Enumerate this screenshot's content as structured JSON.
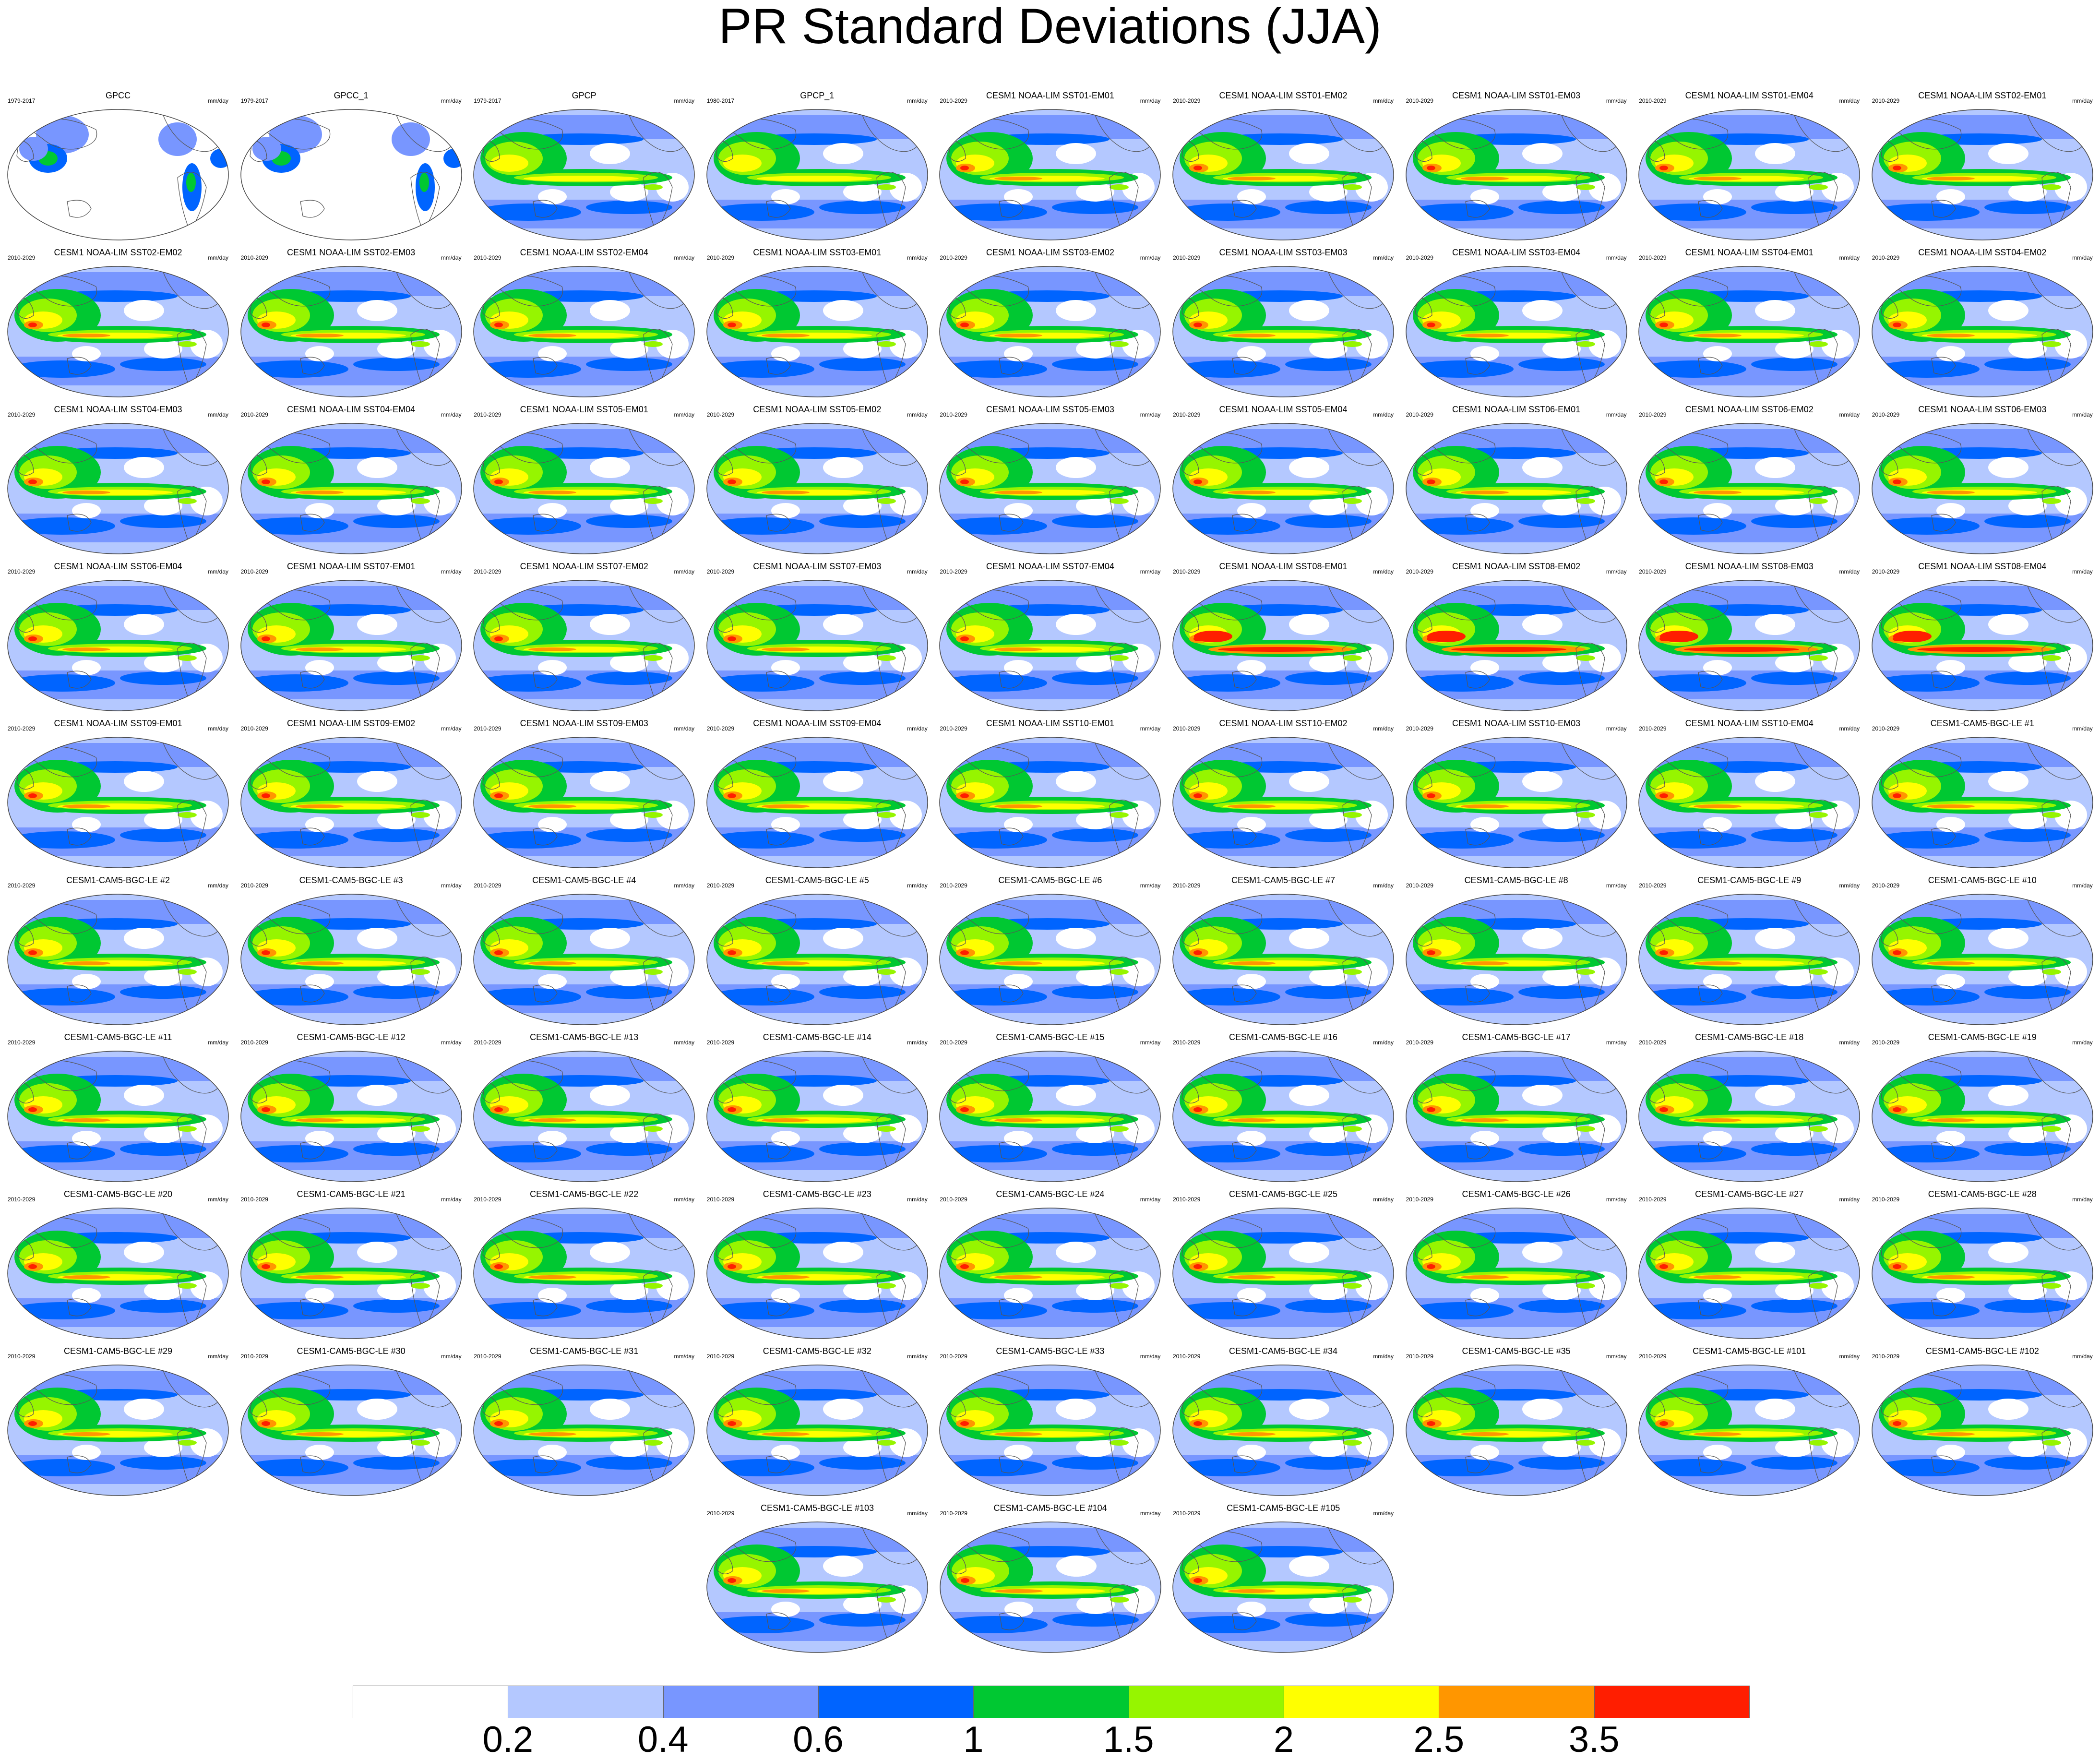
{
  "title": "PR Standard Deviations (JJA)",
  "panels": [
    {
      "name": "GPCC",
      "years": "1979-2017",
      "units": "mm/day",
      "style": "obs_land"
    },
    {
      "name": "GPCC_1",
      "years": "1979-2017",
      "units": "mm/day",
      "style": "obs_land"
    },
    {
      "name": "GPCP",
      "years": "1979-2017",
      "units": "mm/day",
      "style": "obs"
    },
    {
      "name": "GPCP_1",
      "years": "1980-2017",
      "units": "mm/day",
      "style": "obs"
    },
    {
      "name": "CESM1 NOAA-LIM SST01-EM01",
      "years": "2010-2029",
      "units": "mm/day",
      "style": "model"
    },
    {
      "name": "CESM1 NOAA-LIM SST01-EM02",
      "years": "2010-2029",
      "units": "mm/day",
      "style": "model"
    },
    {
      "name": "CESM1 NOAA-LIM SST01-EM03",
      "years": "2010-2029",
      "units": "mm/day",
      "style": "model"
    },
    {
      "name": "CESM1 NOAA-LIM SST01-EM04",
      "years": "2010-2029",
      "units": "mm/day",
      "style": "model"
    },
    {
      "name": "CESM1 NOAA-LIM SST02-EM01",
      "years": "2010-2029",
      "units": "mm/day",
      "style": "model"
    },
    {
      "name": "CESM1 NOAA-LIM SST02-EM02",
      "years": "2010-2029",
      "units": "mm/day",
      "style": "model"
    },
    {
      "name": "CESM1 NOAA-LIM SST02-EM03",
      "years": "2010-2029",
      "units": "mm/day",
      "style": "model"
    },
    {
      "name": "CESM1 NOAA-LIM SST02-EM04",
      "years": "2010-2029",
      "units": "mm/day",
      "style": "model"
    },
    {
      "name": "CESM1 NOAA-LIM SST03-EM01",
      "years": "2010-2029",
      "units": "mm/day",
      "style": "model"
    },
    {
      "name": "CESM1 NOAA-LIM SST03-EM02",
      "years": "2010-2029",
      "units": "mm/day",
      "style": "model"
    },
    {
      "name": "CESM1 NOAA-LIM SST03-EM03",
      "years": "2010-2029",
      "units": "mm/day",
      "style": "model"
    },
    {
      "name": "CESM1 NOAA-LIM SST03-EM04",
      "years": "2010-2029",
      "units": "mm/day",
      "style": "model"
    },
    {
      "name": "CESM1 NOAA-LIM SST04-EM01",
      "years": "2010-2029",
      "units": "mm/day",
      "style": "model"
    },
    {
      "name": "CESM1 NOAA-LIM SST04-EM02",
      "years": "2010-2029",
      "units": "mm/day",
      "style": "model"
    },
    {
      "name": "CESM1 NOAA-LIM SST04-EM03",
      "years": "2010-2029",
      "units": "mm/day",
      "style": "model"
    },
    {
      "name": "CESM1 NOAA-LIM SST04-EM04",
      "years": "2010-2029",
      "units": "mm/day",
      "style": "model"
    },
    {
      "name": "CESM1 NOAA-LIM SST05-EM01",
      "years": "2010-2029",
      "units": "mm/day",
      "style": "model"
    },
    {
      "name": "CESM1 NOAA-LIM SST05-EM02",
      "years": "2010-2029",
      "units": "mm/day",
      "style": "model"
    },
    {
      "name": "CESM1 NOAA-LIM SST05-EM03",
      "years": "2010-2029",
      "units": "mm/day",
      "style": "model"
    },
    {
      "name": "CESM1 NOAA-LIM SST05-EM04",
      "years": "2010-2029",
      "units": "mm/day",
      "style": "model"
    },
    {
      "name": "CESM1 NOAA-LIM SST06-EM01",
      "years": "2010-2029",
      "units": "mm/day",
      "style": "model"
    },
    {
      "name": "CESM1 NOAA-LIM SST06-EM02",
      "years": "2010-2029",
      "units": "mm/day",
      "style": "model"
    },
    {
      "name": "CESM1 NOAA-LIM SST06-EM03",
      "years": "2010-2029",
      "units": "mm/day",
      "style": "model"
    },
    {
      "name": "CESM1 NOAA-LIM SST06-EM04",
      "years": "2010-2029",
      "units": "mm/day",
      "style": "model"
    },
    {
      "name": "CESM1 NOAA-LIM SST07-EM01",
      "years": "2010-2029",
      "units": "mm/day",
      "style": "model"
    },
    {
      "name": "CESM1 NOAA-LIM SST07-EM02",
      "years": "2010-2029",
      "units": "mm/day",
      "style": "model"
    },
    {
      "name": "CESM1 NOAA-LIM SST07-EM03",
      "years": "2010-2029",
      "units": "mm/day",
      "style": "model"
    },
    {
      "name": "CESM1 NOAA-LIM SST07-EM04",
      "years": "2010-2029",
      "units": "mm/day",
      "style": "model"
    },
    {
      "name": "CESM1 NOAA-LIM SST08-EM01",
      "years": "2010-2029",
      "units": "mm/day",
      "style": "model_strong"
    },
    {
      "name": "CESM1 NOAA-LIM SST08-EM02",
      "years": "2010-2029",
      "units": "mm/day",
      "style": "model_strong"
    },
    {
      "name": "CESM1 NOAA-LIM SST08-EM03",
      "years": "2010-2029",
      "units": "mm/day",
      "style": "model_strong"
    },
    {
      "name": "CESM1 NOAA-LIM SST08-EM04",
      "years": "2010-2029",
      "units": "mm/day",
      "style": "model_strong"
    },
    {
      "name": "CESM1 NOAA-LIM SST09-EM01",
      "years": "2010-2029",
      "units": "mm/day",
      "style": "model"
    },
    {
      "name": "CESM1 NOAA-LIM SST09-EM02",
      "years": "2010-2029",
      "units": "mm/day",
      "style": "model"
    },
    {
      "name": "CESM1 NOAA-LIM SST09-EM03",
      "years": "2010-2029",
      "units": "mm/day",
      "style": "model"
    },
    {
      "name": "CESM1 NOAA-LIM SST09-EM04",
      "years": "2010-2029",
      "units": "mm/day",
      "style": "model"
    },
    {
      "name": "CESM1 NOAA-LIM SST10-EM01",
      "years": "2010-2029",
      "units": "mm/day",
      "style": "model"
    },
    {
      "name": "CESM1 NOAA-LIM SST10-EM02",
      "years": "2010-2029",
      "units": "mm/day",
      "style": "model"
    },
    {
      "name": "CESM1 NOAA-LIM SST10-EM03",
      "years": "2010-2029",
      "units": "mm/day",
      "style": "model"
    },
    {
      "name": "CESM1 NOAA-LIM SST10-EM04",
      "years": "2010-2029",
      "units": "mm/day",
      "style": "model"
    },
    {
      "name": "CESM1-CAM5-BGC-LE #1",
      "years": "2010-2029",
      "units": "mm/day",
      "style": "model"
    },
    {
      "name": "CESM1-CAM5-BGC-LE #2",
      "years": "2010-2029",
      "units": "mm/day",
      "style": "model"
    },
    {
      "name": "CESM1-CAM5-BGC-LE #3",
      "years": "2010-2029",
      "units": "mm/day",
      "style": "model"
    },
    {
      "name": "CESM1-CAM5-BGC-LE #4",
      "years": "2010-2029",
      "units": "mm/day",
      "style": "model"
    },
    {
      "name": "CESM1-CAM5-BGC-LE #5",
      "years": "2010-2029",
      "units": "mm/day",
      "style": "model"
    },
    {
      "name": "CESM1-CAM5-BGC-LE #6",
      "years": "2010-2029",
      "units": "mm/day",
      "style": "model"
    },
    {
      "name": "CESM1-CAM5-BGC-LE #7",
      "years": "2010-2029",
      "units": "mm/day",
      "style": "model"
    },
    {
      "name": "CESM1-CAM5-BGC-LE #8",
      "years": "2010-2029",
      "units": "mm/day",
      "style": "model"
    },
    {
      "name": "CESM1-CAM5-BGC-LE #9",
      "years": "2010-2029",
      "units": "mm/day",
      "style": "model"
    },
    {
      "name": "CESM1-CAM5-BGC-LE #10",
      "years": "2010-2029",
      "units": "mm/day",
      "style": "model"
    },
    {
      "name": "CESM1-CAM5-BGC-LE #11",
      "years": "2010-2029",
      "units": "mm/day",
      "style": "model"
    },
    {
      "name": "CESM1-CAM5-BGC-LE #12",
      "years": "2010-2029",
      "units": "mm/day",
      "style": "model"
    },
    {
      "name": "CESM1-CAM5-BGC-LE #13",
      "years": "2010-2029",
      "units": "mm/day",
      "style": "model"
    },
    {
      "name": "CESM1-CAM5-BGC-LE #14",
      "years": "2010-2029",
      "units": "mm/day",
      "style": "model"
    },
    {
      "name": "CESM1-CAM5-BGC-LE #15",
      "years": "2010-2029",
      "units": "mm/day",
      "style": "model"
    },
    {
      "name": "CESM1-CAM5-BGC-LE #16",
      "years": "2010-2029",
      "units": "mm/day",
      "style": "model"
    },
    {
      "name": "CESM1-CAM5-BGC-LE #17",
      "years": "2010-2029",
      "units": "mm/day",
      "style": "model"
    },
    {
      "name": "CESM1-CAM5-BGC-LE #18",
      "years": "2010-2029",
      "units": "mm/day",
      "style": "model"
    },
    {
      "name": "CESM1-CAM5-BGC-LE #19",
      "years": "2010-2029",
      "units": "mm/day",
      "style": "model"
    },
    {
      "name": "CESM1-CAM5-BGC-LE #20",
      "years": "2010-2029",
      "units": "mm/day",
      "style": "model"
    },
    {
      "name": "CESM1-CAM5-BGC-LE #21",
      "years": "2010-2029",
      "units": "mm/day",
      "style": "model"
    },
    {
      "name": "CESM1-CAM5-BGC-LE #22",
      "years": "2010-2029",
      "units": "mm/day",
      "style": "model"
    },
    {
      "name": "CESM1-CAM5-BGC-LE #23",
      "years": "2010-2029",
      "units": "mm/day",
      "style": "model"
    },
    {
      "name": "CESM1-CAM5-BGC-LE #24",
      "years": "2010-2029",
      "units": "mm/day",
      "style": "model"
    },
    {
      "name": "CESM1-CAM5-BGC-LE #25",
      "years": "2010-2029",
      "units": "mm/day",
      "style": "model"
    },
    {
      "name": "CESM1-CAM5-BGC-LE #26",
      "years": "2010-2029",
      "units": "mm/day",
      "style": "model"
    },
    {
      "name": "CESM1-CAM5-BGC-LE #27",
      "years": "2010-2029",
      "units": "mm/day",
      "style": "model"
    },
    {
      "name": "CESM1-CAM5-BGC-LE #28",
      "years": "2010-2029",
      "units": "mm/day",
      "style": "model"
    },
    {
      "name": "CESM1-CAM5-BGC-LE #29",
      "years": "2010-2029",
      "units": "mm/day",
      "style": "model"
    },
    {
      "name": "CESM1-CAM5-BGC-LE #30",
      "years": "2010-2029",
      "units": "mm/day",
      "style": "model"
    },
    {
      "name": "CESM1-CAM5-BGC-LE #31",
      "years": "2010-2029",
      "units": "mm/day",
      "style": "model"
    },
    {
      "name": "CESM1-CAM5-BGC-LE #32",
      "years": "2010-2029",
      "units": "mm/day",
      "style": "model"
    },
    {
      "name": "CESM1-CAM5-BGC-LE #33",
      "years": "2010-2029",
      "units": "mm/day",
      "style": "model"
    },
    {
      "name": "CESM1-CAM5-BGC-LE #34",
      "years": "2010-2029",
      "units": "mm/day",
      "style": "model"
    },
    {
      "name": "CESM1-CAM5-BGC-LE #35",
      "years": "2010-2029",
      "units": "mm/day",
      "style": "model"
    },
    {
      "name": "CESM1-CAM5-BGC-LE #101",
      "years": "2010-2029",
      "units": "mm/day",
      "style": "model"
    },
    {
      "name": "CESM1-CAM5-BGC-LE #102",
      "years": "2010-2029",
      "units": "mm/day",
      "style": "model"
    },
    {
      "name": "CESM1-CAM5-BGC-LE #103",
      "years": "2010-2029",
      "units": "mm/day",
      "style": "model"
    },
    {
      "name": "CESM1-CAM5-BGC-LE #104",
      "years": "2010-2029",
      "units": "mm/day",
      "style": "model"
    },
    {
      "name": "CESM1-CAM5-BGC-LE #105",
      "years": "2010-2029",
      "units": "mm/day",
      "style": "model"
    }
  ],
  "colorbar": {
    "levels": [
      "0.2",
      "0.4",
      "0.6",
      "1",
      "1.5",
      "2",
      "2.5",
      "3.5"
    ],
    "colors": [
      "#ffffff",
      "#b4c8ff",
      "#7896ff",
      "#0064ff",
      "#00c832",
      "#96f500",
      "#ffff00",
      "#ff9600",
      "#ff1e00"
    ]
  },
  "map_colors": {
    "ocean_low": "#b4c8ff",
    "ocean_mid": "#7896ff",
    "ocean_high": "#0064ff",
    "green": "#00c832",
    "lime": "#96f500",
    "yellow": "#ffff00",
    "orange": "#ff9600",
    "red": "#ff1e00",
    "land": "#ffffff",
    "coast": "#555555"
  }
}
